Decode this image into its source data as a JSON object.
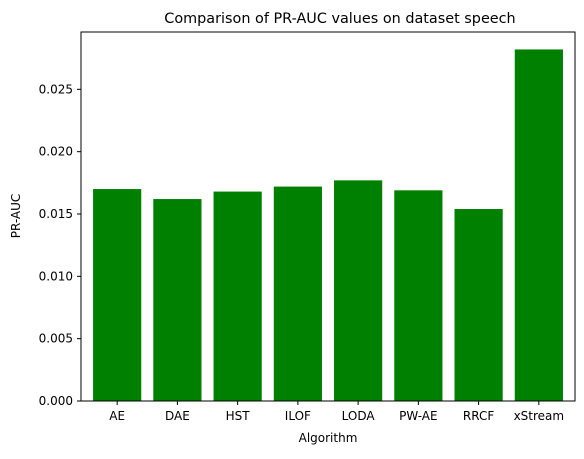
{
  "chart_data": {
    "type": "bar",
    "title": "Comparison of PR-AUC values on dataset speech",
    "xlabel": "Algorithm",
    "ylabel": "PR-AUC",
    "categories": [
      "AE",
      "DAE",
      "HST",
      "ILOF",
      "LODA",
      "PW-AE",
      "RRCF",
      "xStream"
    ],
    "values": [
      0.017,
      0.0162,
      0.0168,
      0.0172,
      0.0177,
      0.0169,
      0.0154,
      0.0282
    ],
    "ylim": [
      0,
      0.0296
    ],
    "yticks": [
      0.0,
      0.005,
      0.01,
      0.015,
      0.02,
      0.025
    ],
    "ytick_labels": [
      "0.000",
      "0.005",
      "0.010",
      "0.015",
      "0.020",
      "0.025"
    ],
    "bar_color": "#008000",
    "grid": false,
    "legend": null
  }
}
